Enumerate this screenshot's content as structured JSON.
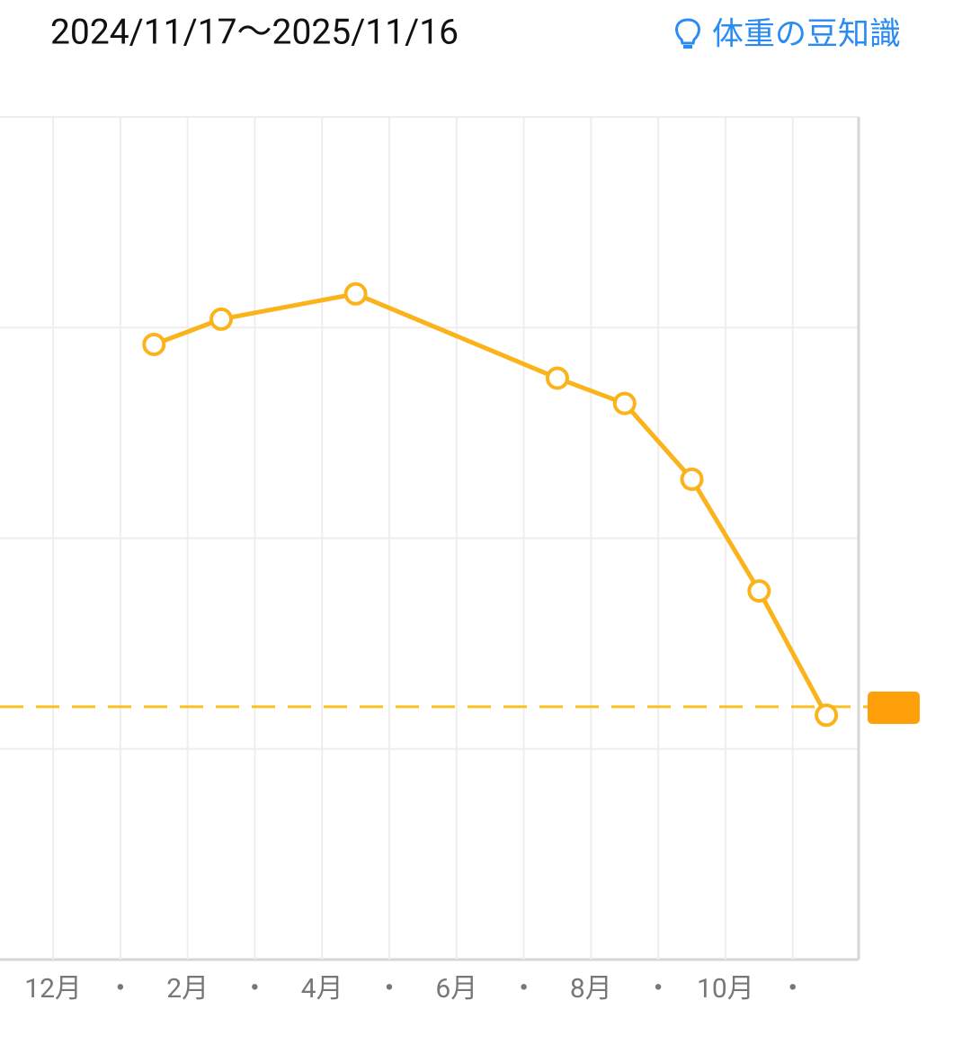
{
  "header": {
    "date_range": "2024/11/17〜2025/11/16",
    "tip_link": "体重の豆知識"
  },
  "chart_data": {
    "type": "line",
    "xlim": [
      -0.79,
      11.98
    ],
    "xticks": [
      {
        "value": 0,
        "label": "12月"
      },
      {
        "value": 1,
        "label": "・"
      },
      {
        "value": 2,
        "label": "2月"
      },
      {
        "value": 3,
        "label": "・"
      },
      {
        "value": 4,
        "label": "4月"
      },
      {
        "value": 5,
        "label": "・"
      },
      {
        "value": 6,
        "label": "6月"
      },
      {
        "value": 7,
        "label": "・"
      },
      {
        "value": 8,
        "label": "8月"
      },
      {
        "value": 9,
        "label": "・"
      },
      {
        "value": 10,
        "label": "10月"
      },
      {
        "value": 11,
        "label": "・"
      }
    ],
    "ylim": [
      0,
      4
    ],
    "yticks": [
      0,
      1,
      2,
      3,
      4
    ],
    "grid": true,
    "series": [
      {
        "color": "#fbb31c",
        "x": [
          1.5,
          2.5,
          4.5,
          7.5,
          8.5,
          9.5,
          10.5,
          11.5
        ],
        "values": [
          2.92,
          3.04,
          3.16,
          2.76,
          2.64,
          2.28,
          1.75,
          1.16
        ]
      }
    ],
    "target": 1.2,
    "target_color": "#fbbf24"
  }
}
